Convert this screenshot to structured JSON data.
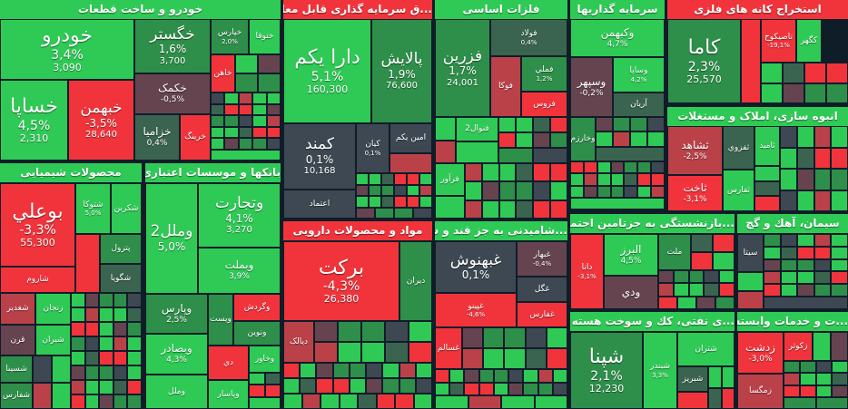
{
  "sectors": [
    {
      "title": "خودرو و ساخت قطعات",
      "tone": "g",
      "tiles": [
        {
          "n": "خودرو",
          "p": "3,4%",
          "v": "3,090"
        },
        {
          "n": "خساپا",
          "p": "4,5%",
          "v": "2,310"
        },
        {
          "n": "خبهمن",
          "p": "-3,5%",
          "v": "28,640"
        },
        {
          "n": "خگستر",
          "p": "1,6%",
          "v": "3,700"
        },
        {
          "n": "خکمک",
          "p": "-0,5%"
        },
        {
          "n": "خزامیا",
          "p": "0,4%"
        },
        {
          "n": "خرینگ"
        },
        {
          "n": "خپارس",
          "p": "2,0%"
        },
        {
          "n": "ختوقا"
        },
        {
          "n": "خاهن"
        }
      ]
    },
    {
      "title": "...ق سرمایه گذاری قابل معامله",
      "tone": "r",
      "tiles": [
        {
          "n": "دارا یکم",
          "p": "5,1%",
          "v": "160,300"
        },
        {
          "n": "پالایش",
          "p": "1,9%",
          "v": "76,600"
        },
        {
          "n": "کمند",
          "p": "0,1%",
          "v": "10,168"
        },
        {
          "n": "کیان",
          "p": "0,1%"
        },
        {
          "n": "امین یکم"
        },
        {
          "n": "اعتماد"
        }
      ]
    },
    {
      "title": "فلزات اساسی",
      "tone": "g",
      "tiles": [
        {
          "n": "فزرین",
          "p": "1,7%",
          "v": "24,001"
        },
        {
          "n": "فولاد",
          "p": "0,4%"
        },
        {
          "n": "فوکا"
        },
        {
          "n": "فملي",
          "p": "1,2%"
        },
        {
          "n": "فروس"
        },
        {
          "n": "فنوال2"
        },
        {
          "n": "فرآور"
        }
      ]
    },
    {
      "title": "سرمایه گذاریها",
      "tone": "g",
      "tiles": [
        {
          "n": "وکبهمن",
          "p": "4,7%"
        },
        {
          "n": "وسپهر",
          "p": "-0,2%"
        },
        {
          "n": "وساپا",
          "p": "4,2%"
        },
        {
          "n": "آریان"
        },
        {
          "n": "وخارزم"
        }
      ]
    },
    {
      "title": "استخراج کانه های فلزی",
      "tone": "r",
      "tiles": [
        {
          "n": "کاما",
          "p": "2,3%",
          "v": "25,570"
        },
        {
          "n": ""
        },
        {
          "n": "تاصیکوح",
          "p": "-19,1%"
        },
        {
          "n": "کگهر"
        }
      ]
    },
    {
      "title": "انبوه سازی، املاک و مستغلات",
      "tone": "g",
      "tiles": [
        {
          "n": "ثشاهد",
          "p": "-2,5%"
        },
        {
          "n": "ثاخت",
          "p": "-3,1%"
        },
        {
          "n": "ثفزوي"
        },
        {
          "n": "ثفارس"
        },
        {
          "n": "ثامید"
        }
      ]
    },
    {
      "title": "محصولات شیمیایی",
      "tone": "g",
      "tiles": [
        {
          "n": "بوعلي",
          "p": "-3,3%",
          "v": "55,300"
        },
        {
          "n": "شاروم"
        },
        {
          "n": "شتوکا",
          "p": "5,0%"
        },
        {
          "n": "شکربن"
        },
        {
          "n": "پترول"
        },
        {
          "n": "شگویا"
        },
        {
          "n": "شغدیر"
        },
        {
          "n": "زنجان"
        },
        {
          "n": "قرن"
        },
        {
          "n": "شیران"
        },
        {
          "n": "شسینا"
        },
        {
          "n": "شفارس"
        }
      ]
    },
    {
      "title": "بانکها و موسسات اعتباری",
      "tone": "g",
      "tiles": [
        {
          "n": "وملل2",
          "p": "5,0%"
        },
        {
          "n": "وتجارت",
          "p": "4,1%",
          "v": "3,270"
        },
        {
          "n": "وبملت",
          "p": "3,9%"
        },
        {
          "n": "وپارس",
          "p": "2,5%"
        },
        {
          "n": "ویست"
        },
        {
          "n": "وگردش"
        },
        {
          "n": "ونوین"
        },
        {
          "n": "وبصادر",
          "p": "4,3%"
        },
        {
          "n": "دي"
        },
        {
          "n": "وخاور"
        },
        {
          "n": "وملل"
        },
        {
          "n": "وپاسار"
        }
      ]
    },
    {
      "title": "مواد و محصولات دارویی",
      "tone": "r",
      "tiles": [
        {
          "n": "برکت",
          "p": "-4,3%",
          "v": "26,380"
        },
        {
          "n": "دیران"
        },
        {
          "n": "دیالک"
        }
      ]
    },
    {
      "title": "...شامیدنی به جز قند و شکر",
      "tone": "g",
      "tiles": [
        {
          "n": "غبهنوش",
          "p": "0,1%"
        },
        {
          "n": "غبهار",
          "p": "-0,4%"
        },
        {
          "n": "غگل"
        },
        {
          "n": "غپینو",
          "p": "-4,6%"
        },
        {
          "n": "غفارس"
        },
        {
          "n": "غسالم"
        }
      ]
    },
    {
      "title": "...بازنشستگی به جزتامین اجتماعی",
      "tone": "g",
      "tiles": [
        {
          "n": "دانا",
          "p": "-3,1%"
        },
        {
          "n": "البرز",
          "p": "4,5%"
        },
        {
          "n": "ودي"
        },
        {
          "n": "ملت"
        }
      ]
    },
    {
      "title": "سیمان، آهك و گچ",
      "tone": "g",
      "tiles": [
        {
          "n": "سیتا"
        }
      ]
    },
    {
      "title": "...ی نفتی، کك و سوخت هسته ای",
      "tone": "g",
      "tiles": [
        {
          "n": "شپنا",
          "p": "2,1%",
          "v": "12,230"
        },
        {
          "n": "شبندر",
          "p": "3,3%"
        },
        {
          "n": "شتران"
        },
        {
          "n": "شبریز"
        }
      ]
    },
    {
      "title": "...ت و خدمات وابسته",
      "tone": "g",
      "tiles": [
        {
          "n": "زدشت",
          "p": "-3,0%"
        },
        {
          "n": "زکوثر"
        },
        {
          "n": "زمگسا"
        }
      ]
    }
  ],
  "colors": {
    "up": "#2fca56",
    "up_dark": "#2e8f4a",
    "flat": "#3d4852",
    "down": "#f1343b",
    "down_dark": "#bb4149",
    "background": "#0f1d29"
  }
}
